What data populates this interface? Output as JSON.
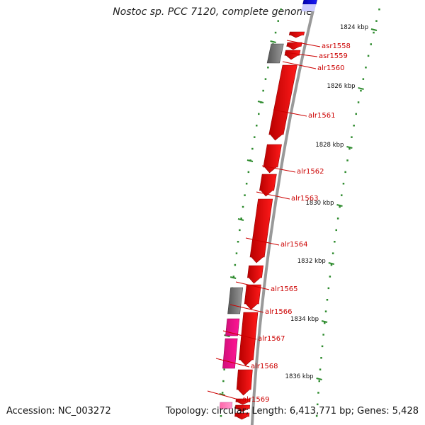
{
  "title": "Nostoc sp. PCC 7120, complete genome",
  "accession": "Accession: NC_003272",
  "topology": "Topology: circular; Length: 6,413,771 bp; Genes: 5,428",
  "colors": {
    "forward_gene": "#ff1a1a",
    "gray_feature": "#7a7a7a",
    "pink_feature": "#ff1493",
    "light_pink_feature": "#ff99cc",
    "blue_feature": "#1a1aff",
    "tick": "#2e8b2e",
    "label": "#cc0000",
    "backbone": "#999999"
  },
  "scale_labels": [
    "1824 kbp",
    "1826 kbp",
    "1828 kbp",
    "1830 kbp",
    "1832 kbp",
    "1834 kbp",
    "1836 kbp"
  ],
  "genes": [
    {
      "name": "asr1558"
    },
    {
      "name": "asr1559"
    },
    {
      "name": "alr1560"
    },
    {
      "name": "alr1561"
    },
    {
      "name": "alr1562"
    },
    {
      "name": "alr1563"
    },
    {
      "name": "alr1564"
    },
    {
      "name": "alr1565"
    },
    {
      "name": "alr1566"
    },
    {
      "name": "alr1567"
    },
    {
      "name": "alr1568"
    },
    {
      "name": "alr1569"
    }
  ]
}
